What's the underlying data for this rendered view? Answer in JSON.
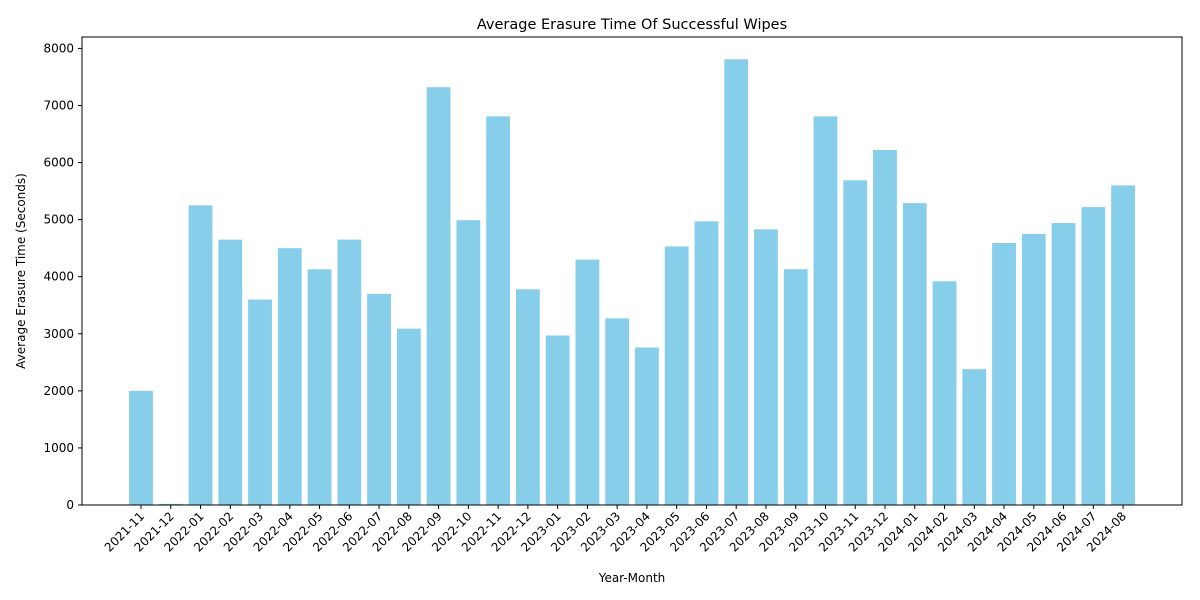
{
  "chart_data": {
    "type": "bar",
    "title": "Average Erasure Time Of Successful Wipes",
    "xlabel": "Year-Month",
    "ylabel": "Average Erasure Time (Seconds)",
    "ylim": [
      0,
      8200
    ],
    "yticks": [
      0,
      1000,
      2000,
      3000,
      4000,
      5000,
      6000,
      7000,
      8000
    ],
    "bar_color": "#87ceeb",
    "grid": false,
    "legend": "none",
    "categories": [
      "2021-11",
      "2021-12",
      "2022-01",
      "2022-02",
      "2022-03",
      "2022-04",
      "2022-05",
      "2022-06",
      "2022-07",
      "2022-08",
      "2022-09",
      "2022-10",
      "2022-11",
      "2022-12",
      "2023-01",
      "2023-02",
      "2023-03",
      "2023-04",
      "2023-05",
      "2023-06",
      "2023-07",
      "2023-08",
      "2023-09",
      "2023-10",
      "2023-11",
      "2023-12",
      "2024-01",
      "2024-02",
      "2024-03",
      "2024-04",
      "2024-05",
      "2024-06",
      "2024-07",
      "2024-08"
    ],
    "values": [
      2000,
      20,
      5250,
      4650,
      3600,
      4500,
      4130,
      4650,
      3700,
      3090,
      7320,
      4990,
      6810,
      3780,
      2970,
      4300,
      3270,
      2760,
      4530,
      4970,
      7810,
      4830,
      4130,
      6810,
      5690,
      6220,
      5290,
      3920,
      2380,
      4590,
      4750,
      4940,
      5220,
      5600
    ]
  }
}
